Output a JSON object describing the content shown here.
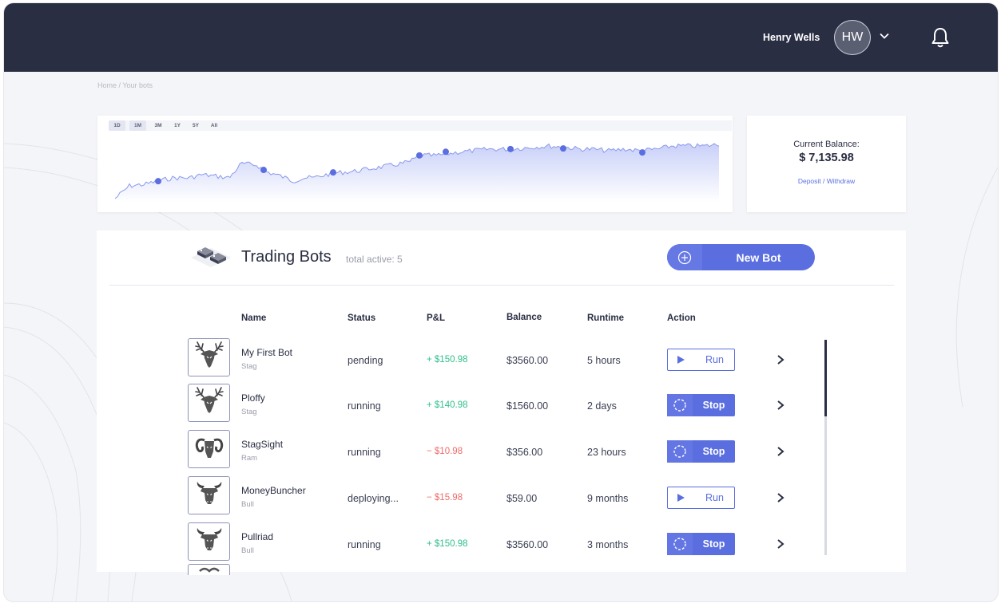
{
  "header": {
    "user_name": "Henry Wells",
    "avatar_initials": "HW",
    "bg_color": "#2a2e43"
  },
  "breadcrumb": "Home / Your bots",
  "chart": {
    "ranges": [
      "1D",
      "1M",
      "3M",
      "1Y",
      "5Y",
      "All"
    ],
    "active_ranges": [
      "1D",
      "1M"
    ],
    "fill_color": "#dfe3fb",
    "line_color": "#5a6ee0"
  },
  "balance": {
    "label": "Current Balance:",
    "value": "$ 7,135.98",
    "link": "Deposit / Withdraw"
  },
  "bots": {
    "title": "Trading Bots",
    "subtitle": "total active: 5",
    "new_button": "New Bot",
    "columns": {
      "name": "Name",
      "status": "Status",
      "pnl": "P&L",
      "balance": "Balance",
      "runtime": "Runtime",
      "action": "Action"
    },
    "rows": [
      {
        "name": "My First Bot",
        "type": "Stag",
        "icon": "stag-icon",
        "status": "pending",
        "pnl": "+ $150.98",
        "pnl_sign": "pos",
        "balance": "$3560.00",
        "runtime": "5 hours",
        "action": "Run"
      },
      {
        "name": "Ploffy",
        "type": "Stag",
        "icon": "stag-icon",
        "status": "running",
        "pnl": "+ $140.98",
        "pnl_sign": "pos",
        "balance": "$1560.00",
        "runtime": "2 days",
        "action": "Stop"
      },
      {
        "name": "StagSight",
        "type": "Ram",
        "icon": "ram-icon",
        "status": "running",
        "pnl": "− $10.98",
        "pnl_sign": "neg",
        "balance": "$356.00",
        "runtime": "23 hours",
        "action": "Stop"
      },
      {
        "name": "MoneyBuncher",
        "type": "Bull",
        "icon": "bull-icon",
        "status": "deploying...",
        "pnl": "− $15.98",
        "pnl_sign": "neg",
        "balance": "$59.00",
        "runtime": "9 months",
        "action": "Run"
      },
      {
        "name": "Pullriad",
        "type": "Bull",
        "icon": "bull-icon",
        "status": "running",
        "pnl": "+ $150.98",
        "pnl_sign": "pos",
        "balance": "$3560.00",
        "runtime": "3 months",
        "action": "Stop"
      }
    ],
    "accent_color": "#5a6ee0",
    "positive_color": "#2fbf8a",
    "negative_color": "#f06a6a"
  }
}
